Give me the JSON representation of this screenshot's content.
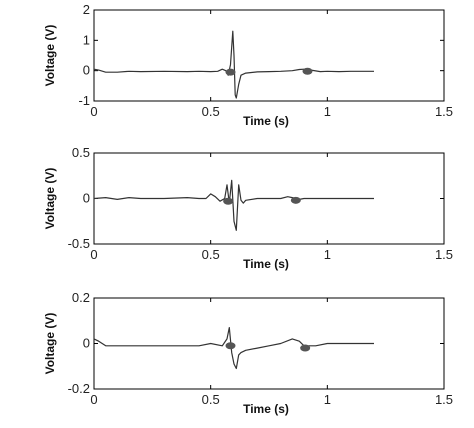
{
  "chart_data": [
    {
      "type": "line",
      "title": "",
      "xlabel": "Time (s)",
      "ylabel": "Voltage (V)",
      "xlim": [
        0,
        1.5
      ],
      "ylim": [
        -1,
        2
      ],
      "xticks": [
        "0",
        "0.5",
        "1",
        "1.5"
      ],
      "yticks": [
        "-1",
        "0",
        "1",
        "2"
      ],
      "ytick_values": [
        -1,
        0,
        1,
        2
      ],
      "grid": false,
      "series": [
        {
          "color": "#333333",
          "x": [
            0.0,
            0.02,
            0.05,
            0.1,
            0.15,
            0.2,
            0.3,
            0.4,
            0.45,
            0.5,
            0.53,
            0.55,
            0.565,
            0.575,
            0.585,
            0.595,
            0.6,
            0.605,
            0.61,
            0.62,
            0.63,
            0.65,
            0.7,
            0.75,
            0.8,
            0.85,
            0.88,
            0.9,
            0.93,
            0.97,
            1.0,
            1.05,
            1.1,
            1.2
          ],
          "y": [
            0.05,
            0.02,
            -0.05,
            -0.05,
            -0.02,
            -0.03,
            -0.02,
            -0.03,
            -0.02,
            -0.03,
            -0.02,
            0.05,
            0.0,
            -0.15,
            0.2,
            1.3,
            0.5,
            -0.8,
            -0.9,
            -0.45,
            -0.15,
            -0.08,
            -0.04,
            -0.03,
            -0.02,
            0.0,
            0.04,
            0.05,
            0.02,
            -0.03,
            -0.02,
            -0.03,
            -0.02,
            -0.02
          ]
        }
      ],
      "markers": [
        {
          "x": 0.585,
          "y": -0.05
        },
        {
          "x": 0.915,
          "y": -0.02
        }
      ]
    },
    {
      "type": "line",
      "title": "",
      "xlabel": "Time (s)",
      "ylabel": "Voltage (V)",
      "xlim": [
        0,
        1.5
      ],
      "ylim": [
        -0.5,
        0.5
      ],
      "xticks": [
        "0",
        "0.5",
        "1",
        "1.5"
      ],
      "yticks": [
        "-0.5",
        "0",
        "0.5"
      ],
      "ytick_values": [
        -0.5,
        0,
        0.5
      ],
      "grid": false,
      "series": [
        {
          "color": "#333333",
          "x": [
            0.0,
            0.05,
            0.1,
            0.15,
            0.2,
            0.3,
            0.4,
            0.45,
            0.48,
            0.5,
            0.52,
            0.54,
            0.56,
            0.57,
            0.58,
            0.59,
            0.6,
            0.61,
            0.62,
            0.63,
            0.64,
            0.65,
            0.7,
            0.75,
            0.8,
            0.83,
            0.85,
            0.88,
            0.9,
            0.95,
            1.0,
            1.1,
            1.2
          ],
          "y": [
            0.0,
            0.01,
            -0.01,
            0.01,
            0.0,
            0.0,
            0.01,
            0.0,
            0.0,
            0.05,
            0.02,
            -0.03,
            0.0,
            0.15,
            -0.05,
            0.2,
            -0.25,
            -0.35,
            0.15,
            -0.02,
            -0.05,
            -0.02,
            0.0,
            0.0,
            0.0,
            0.02,
            0.01,
            -0.01,
            0.0,
            0.0,
            0.0,
            0.0,
            0.0
          ]
        }
      ],
      "markers": [
        {
          "x": 0.575,
          "y": -0.03
        },
        {
          "x": 0.865,
          "y": -0.02
        }
      ]
    },
    {
      "type": "line",
      "title": "",
      "xlabel": "Time (s)",
      "ylabel": "Voltage (V)",
      "xlim": [
        0,
        1.5
      ],
      "ylim": [
        -0.2,
        0.2
      ],
      "xticks": [
        "0",
        "0.5",
        "1",
        "1.5"
      ],
      "yticks": [
        "-0.2",
        "0",
        "0.2"
      ],
      "ytick_values": [
        -0.2,
        0,
        0.2
      ],
      "grid": false,
      "series": [
        {
          "color": "#333333",
          "x": [
            0.0,
            0.02,
            0.05,
            0.1,
            0.2,
            0.3,
            0.4,
            0.45,
            0.5,
            0.55,
            0.57,
            0.58,
            0.59,
            0.6,
            0.61,
            0.62,
            0.63,
            0.65,
            0.7,
            0.75,
            0.8,
            0.85,
            0.88,
            0.9,
            0.95,
            1.0,
            1.1,
            1.2
          ],
          "y": [
            0.02,
            0.01,
            -0.01,
            -0.01,
            -0.01,
            -0.01,
            -0.01,
            -0.01,
            0.0,
            -0.01,
            0.02,
            0.07,
            -0.04,
            -0.09,
            -0.11,
            -0.05,
            -0.04,
            -0.03,
            -0.02,
            -0.01,
            0.0,
            0.02,
            0.01,
            -0.01,
            -0.01,
            0.0,
            0.0,
            0.0
          ]
        }
      ],
      "markers": [
        {
          "x": 0.585,
          "y": -0.01
        },
        {
          "x": 0.905,
          "y": -0.02
        }
      ]
    }
  ]
}
